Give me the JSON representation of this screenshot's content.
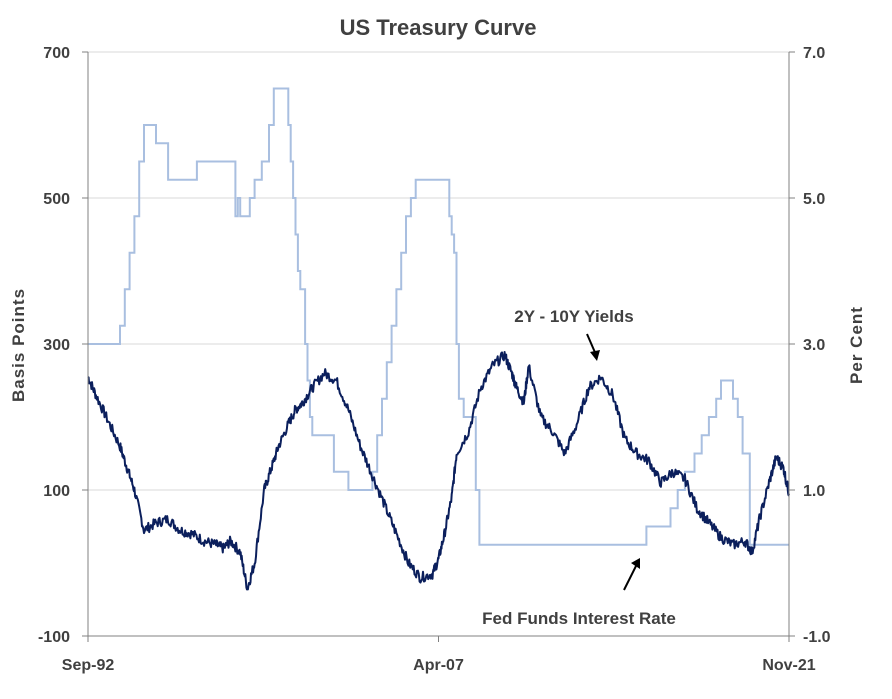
{
  "chart_data": {
    "type": "line",
    "title": "US Treasury Curve",
    "ylabel_left": "Basis  Points",
    "ylabel_right": "Per  Cent",
    "left_axis": {
      "ylim": [
        -100,
        700
      ],
      "ticks": [
        "700",
        "500",
        "300",
        "100",
        "-100"
      ]
    },
    "right_axis": {
      "ylim": [
        -1.0,
        7.0
      ],
      "ticks": [
        "7.0",
        "5.0",
        "3.0",
        "1.0",
        "-1.0"
      ]
    },
    "x_axis": {
      "range": [
        1992.67,
        2021.83
      ],
      "ticks": [
        {
          "x": 1992.67,
          "label": "Sep-92"
        },
        {
          "x": 2007.25,
          "label": "Apr-07"
        },
        {
          "x": 2021.83,
          "label": "Nov-21"
        }
      ]
    },
    "grid": "horizontal",
    "colors": {
      "spread": "#0b1f5c",
      "fedfunds": "#a9bfe0",
      "grid": "#d9d9d9",
      "axis": "#808080",
      "text": "#404040"
    },
    "annotations": [
      {
        "text": "2Y - 10Y Yields",
        "series": "spread"
      },
      {
        "text": "Fed Funds Interest Rate",
        "series": "fedfunds"
      }
    ],
    "series": [
      {
        "axis": "left",
        "step": false,
        "x": [
          1992.67,
          1993.0,
          1993.5,
          1994.0,
          1994.3,
          1994.6,
          1995.0,
          1995.5,
          1996.0,
          1996.5,
          1997.0,
          1997.5,
          1998.0,
          1998.3,
          1998.6,
          1999.0,
          1999.3,
          1999.6,
          2000.0,
          2000.3,
          2000.6,
          2001.0,
          2001.3,
          2001.6,
          2002.0,
          2002.5,
          2003.0,
          2003.5,
          2004.0,
          2004.5,
          2005.0,
          2005.5,
          2006.0,
          2006.5,
          2007.0,
          2007.25,
          2007.5,
          2007.8,
          2008.0,
          2008.5,
          2009.0,
          2009.5,
          2010.0,
          2010.3,
          2010.5,
          2010.8,
          2011.0,
          2011.5,
          2012.0,
          2012.5,
          2013.0,
          2013.5,
          2014.0,
          2014.5,
          2015.0,
          2015.5,
          2016.0,
          2016.5,
          2017.0,
          2017.5,
          2018.0,
          2018.5,
          2019.0,
          2019.5,
          2020.0,
          2020.3,
          2020.6,
          2021.0,
          2021.3,
          2021.6,
          2021.83
        ],
        "values": [
          255,
          230,
          195,
          160,
          130,
          100,
          45,
          55,
          60,
          45,
          40,
          30,
          25,
          20,
          30,
          15,
          -35,
          0,
          100,
          130,
          160,
          190,
          210,
          220,
          240,
          260,
          250,
          210,
          160,
          120,
          80,
          40,
          0,
          -20,
          -15,
          5,
          40,
          90,
          150,
          180,
          240,
          270,
          285,
          260,
          240,
          220,
          270,
          200,
          180,
          150,
          190,
          240,
          255,
          230,
          170,
          150,
          140,
          110,
          125,
          115,
          75,
          55,
          35,
          25,
          30,
          15,
          60,
          110,
          145,
          130,
          95
        ]
      },
      {
        "axis": "right",
        "step": true,
        "x": [
          1992.67,
          1994.0,
          1994.2,
          1994.4,
          1994.6,
          1994.8,
          1995.0,
          1995.5,
          1996.0,
          1997.2,
          1998.8,
          1998.9,
          1999.0,
          1999.4,
          1999.6,
          1999.9,
          2000.2,
          2000.4,
          2001.0,
          2001.1,
          2001.2,
          2001.3,
          2001.4,
          2001.5,
          2001.7,
          2001.8,
          2001.9,
          2002.0,
          2002.9,
          2003.5,
          2004.5,
          2004.7,
          2004.9,
          2005.1,
          2005.3,
          2005.5,
          2005.7,
          2005.9,
          2006.1,
          2006.3,
          2006.5,
          2007.7,
          2007.8,
          2007.9,
          2008.0,
          2008.1,
          2008.3,
          2008.8,
          2008.95,
          2015.9,
          2016.9,
          2017.2,
          2017.5,
          2017.9,
          2018.2,
          2018.5,
          2018.8,
          2019.0,
          2019.5,
          2019.7,
          2019.9,
          2020.2,
          2021.83
        ],
        "values": [
          3.0,
          3.25,
          3.75,
          4.25,
          4.75,
          5.5,
          6.0,
          5.75,
          5.25,
          5.5,
          4.75,
          5.0,
          4.75,
          5.0,
          5.25,
          5.5,
          6.0,
          6.5,
          6.0,
          5.5,
          5.0,
          4.5,
          4.0,
          3.75,
          3.0,
          2.5,
          2.0,
          1.75,
          1.25,
          1.0,
          1.25,
          1.75,
          2.25,
          2.75,
          3.25,
          3.75,
          4.25,
          4.75,
          5.0,
          5.25,
          5.25,
          4.75,
          4.5,
          4.25,
          3.0,
          2.25,
          2.0,
          1.0,
          0.25,
          0.5,
          0.75,
          1.0,
          1.25,
          1.5,
          1.75,
          2.0,
          2.25,
          2.5,
          2.25,
          2.0,
          1.5,
          0.25,
          0.25
        ]
      }
    ]
  }
}
